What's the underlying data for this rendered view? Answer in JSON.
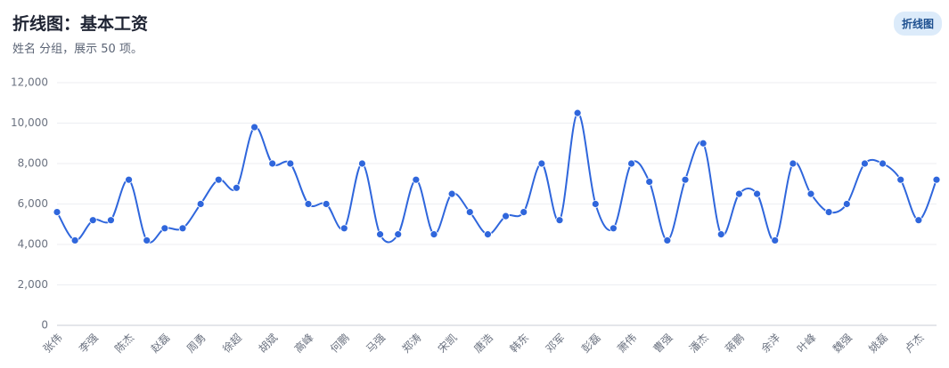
{
  "header": {
    "title": "折线图：基本工资",
    "subtitle": "姓名 分组，展示 50 项。",
    "badge": "折线图"
  },
  "chart_data": {
    "type": "line",
    "categories": [
      "张伟",
      null,
      "李强",
      null,
      "陈杰",
      null,
      "赵磊",
      null,
      "周勇",
      null,
      "徐超",
      null,
      "胡斌",
      null,
      "高峰",
      null,
      "何鹏",
      null,
      "马强",
      null,
      "郑涛",
      null,
      "宋凯",
      null,
      "唐浩",
      null,
      "韩东",
      null,
      "邓军",
      null,
      "彭磊",
      null,
      "萧伟",
      null,
      "曹强",
      null,
      "潘杰",
      null,
      "蒋鹏",
      null,
      "余洋",
      null,
      "叶峰",
      null,
      "魏强",
      null,
      "姚磊",
      null,
      "卢杰",
      null
    ],
    "values": [
      5600,
      4200,
      5200,
      5200,
      7200,
      4200,
      4800,
      4800,
      6000,
      7200,
      6800,
      9800,
      8000,
      8000,
      6000,
      6000,
      4800,
      8000,
      4500,
      4500,
      7200,
      4500,
      6500,
      5600,
      4500,
      5400,
      5600,
      8000,
      5200,
      10500,
      6000,
      4800,
      8000,
      7100,
      4200,
      7200,
      9000,
      4500,
      6500,
      6500,
      4200,
      8000,
      6500,
      5600,
      6000,
      8000,
      8000,
      7200,
      5200,
      7200
    ],
    "color": "#2f66dc",
    "ylim": [
      0,
      12000
    ],
    "yticks": [
      0,
      {
        "value": 2000,
        "label": "2,000"
      },
      {
        "value": 4000,
        "label": "4,000"
      },
      {
        "value": 6000,
        "label": "6,000"
      },
      {
        "value": 8000,
        "label": "8,000"
      },
      {
        "value": 10000,
        "label": "10,000"
      },
      {
        "value": 12000,
        "label": "12,000"
      }
    ],
    "grid": true
  }
}
